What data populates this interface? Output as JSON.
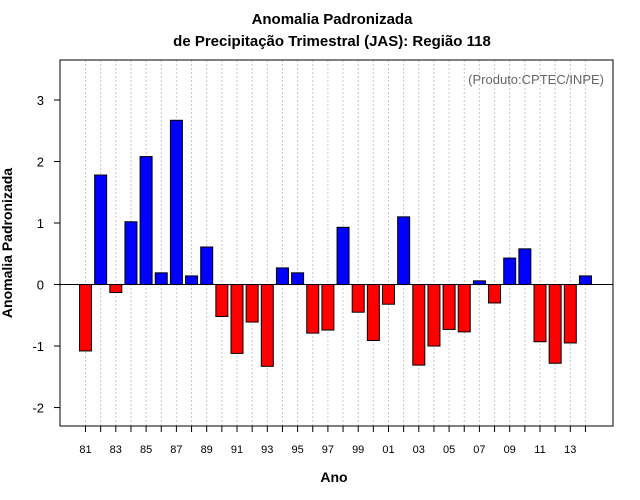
{
  "chart_data": {
    "type": "bar",
    "title": [
      "Anomalia Padronizada",
      "de Precipitação Trimestral (JAS): Região 118"
    ],
    "xlabel": "Ano",
    "ylabel": "Anomalia Padronizada",
    "credit": "(Produto:CPTEC/INPE)",
    "ylim": [
      -2.3,
      3.65
    ],
    "yticks": [
      -2,
      -1,
      0,
      1,
      2,
      3
    ],
    "ytick_labels": [
      "-2",
      "-1",
      "0",
      "1",
      "2",
      "3"
    ],
    "xtick_labels": [
      "81",
      "83",
      "85",
      "87",
      "89",
      "91",
      "93",
      "95",
      "97",
      "99",
      "01",
      "03",
      "05",
      "07",
      "09",
      "11",
      "13"
    ],
    "years": [
      1981,
      1982,
      1983,
      1984,
      1985,
      1986,
      1987,
      1988,
      1989,
      1990,
      1991,
      1992,
      1993,
      1994,
      1995,
      1996,
      1997,
      1998,
      1999,
      2000,
      2001,
      2002,
      2003,
      2004,
      2005,
      2006,
      2007,
      2008,
      2009,
      2010,
      2011,
      2012,
      2013,
      2014
    ],
    "values": [
      -1.08,
      1.78,
      -0.13,
      1.02,
      2.08,
      0.19,
      2.67,
      0.14,
      0.61,
      -0.52,
      -1.12,
      -0.61,
      -1.33,
      0.27,
      0.19,
      -0.79,
      -0.74,
      0.93,
      -0.45,
      -0.91,
      -0.32,
      1.1,
      -1.31,
      -1.0,
      -0.73,
      -0.77,
      0.06,
      -0.3,
      0.43,
      0.58,
      -0.93,
      -1.28,
      -0.95,
      0.14
    ],
    "grid": true,
    "colors": {
      "positive": "#0000ff",
      "negative": "#ff0000",
      "grid": "#c8c8c8",
      "bar_stroke": "#000000"
    }
  }
}
